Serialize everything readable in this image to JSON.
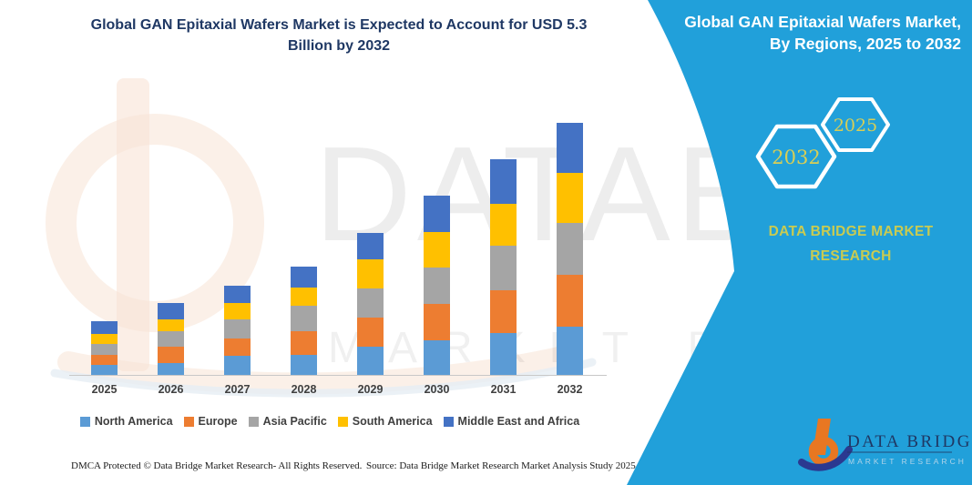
{
  "header": {
    "chart_title_lines": [
      "Global GAN Epitaxial Wafers Market is Expected to Account for USD 5.3",
      "Billion by 2032"
    ]
  },
  "panel": {
    "title_lines": [
      "Global GAN Epitaxial Wafers Market,",
      "By Regions, 2025 to 2032"
    ],
    "hex_large_year": "2032",
    "hex_small_year": "2025",
    "brand_lines": [
      "DATA BRIDGE MARKET",
      "RESEARCH"
    ],
    "bg_color": "#21A0DA"
  },
  "logo": {
    "title": "DATA BRIDGE",
    "subtitle": "MARKET RESEARCH"
  },
  "watermark": {
    "row1": "DATABRIDGE",
    "row2": "MARKET RESEARCH"
  },
  "footer": {
    "dmca": "DMCA Protected © Data Bridge Market Research-  All Rights Reserved.",
    "source": "Source: Data Bridge Market Research  Market Analysis Study 2025"
  },
  "colors": {
    "title_navy": "#1F3864",
    "panel_teal": "#21A0DA",
    "brand_yellow": "#C9CB51",
    "hex_year_yellow": "#D8CE55",
    "logo_orange": "#E87722",
    "logo_navy": "#2B3990",
    "axis_gray": "#C8C8C8",
    "label_gray": "#404040"
  },
  "chart_data": {
    "type": "bar",
    "stacked": true,
    "title": "Global GAN Epitaxial Wafers Market is Expected to Account for USD 5.3 Billion by 2032",
    "unit": "USD Billion",
    "categories": [
      "2025",
      "2026",
      "2027",
      "2028",
      "2029",
      "2030",
      "2031",
      "2032"
    ],
    "series": [
      {
        "name": "North America",
        "color": "#5B9BD5",
        "values": [
          0.21,
          0.25,
          0.4,
          0.43,
          0.59,
          0.72,
          0.89,
          1.02
        ]
      },
      {
        "name": "Europe",
        "color": "#ED7D31",
        "values": [
          0.22,
          0.34,
          0.36,
          0.48,
          0.61,
          0.77,
          0.89,
          1.09
        ]
      },
      {
        "name": "Asia Pacific",
        "color": "#A5A5A5",
        "values": [
          0.22,
          0.33,
          0.4,
          0.54,
          0.61,
          0.77,
          0.93,
          1.09
        ]
      },
      {
        "name": "South America",
        "color": "#FFC000",
        "values": [
          0.22,
          0.25,
          0.35,
          0.38,
          0.61,
          0.75,
          0.89,
          1.05
        ]
      },
      {
        "name": "Middle East and Africa",
        "color": "#4472C4",
        "values": [
          0.25,
          0.33,
          0.36,
          0.45,
          0.57,
          0.75,
          0.93,
          1.05
        ]
      }
    ],
    "totals": [
      1.12,
      1.5,
      1.87,
      2.28,
      2.99,
      3.76,
      4.53,
      5.3
    ],
    "xlabel": "",
    "ylabel": "",
    "y_axis_visible": false,
    "gridlines": false,
    "legend_position": "bottom"
  }
}
